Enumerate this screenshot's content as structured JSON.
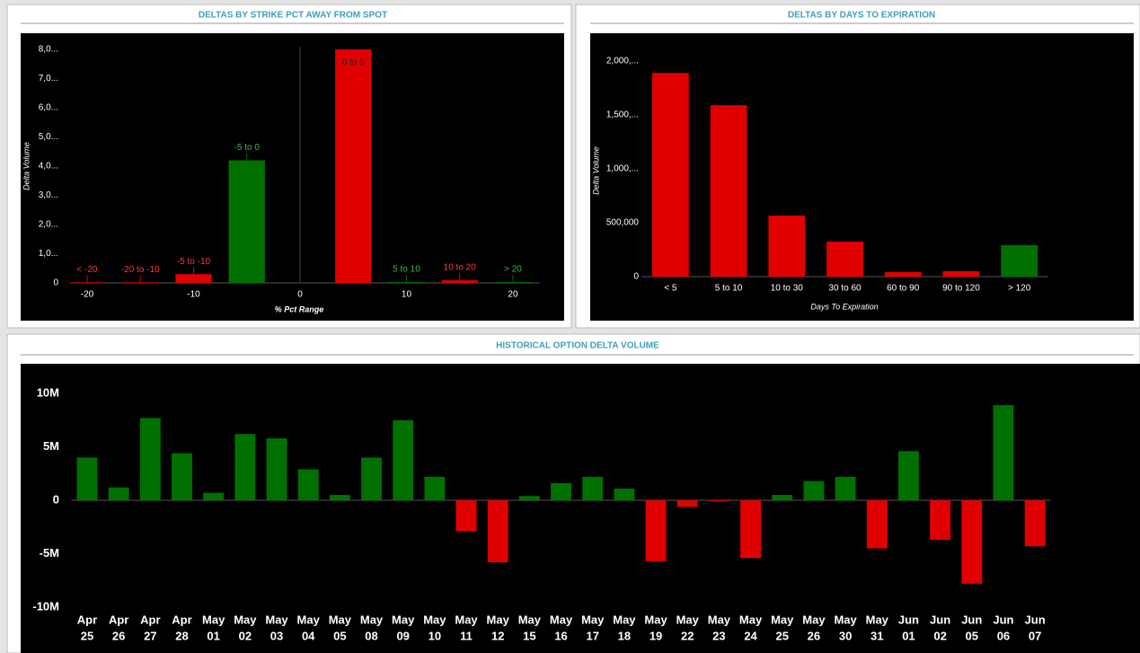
{
  "chart_data": [
    {
      "type": "bar",
      "title": "DELTAS BY STRIKE PCT AWAY FROM SPOT",
      "x_label": "% Pct Range",
      "y_label": "Delta Volume",
      "labels": [
        "< -20",
        "-20 to -10",
        "-5 to -10",
        "-5 to 0",
        "0 to 5",
        "5 to 10",
        "10 to 20",
        "> 20"
      ],
      "x": [
        -20,
        -15,
        -10,
        -5,
        5,
        10,
        15,
        20
      ],
      "values": [
        20,
        20,
        300,
        4200,
        8000,
        30,
        90,
        30
      ],
      "colors": [
        "#e00000",
        "#e00000",
        "#e00000",
        "#007000",
        "#e00000",
        "#007000",
        "#e00000",
        "#007000"
      ],
      "xlim": [
        -21.5,
        22.5
      ],
      "xticks": [
        -20,
        -10,
        0,
        10,
        20
      ],
      "ylim": [
        0,
        8300
      ],
      "yticks": [
        0,
        {
          "value": 1000,
          "label": "1,0..."
        },
        {
          "value": 2000,
          "label": "2,0..."
        },
        {
          "value": 3000,
          "label": "3,0..."
        },
        {
          "value": 4000,
          "label": "4,0..."
        },
        {
          "value": 5000,
          "label": "5,0..."
        },
        {
          "value": 6000,
          "label": "6,0..."
        },
        {
          "value": 7000,
          "label": "7,0..."
        },
        {
          "value": 8000,
          "label": "8,0..."
        }
      ]
    },
    {
      "type": "bar",
      "title": "DELTAS BY DAYS TO EXPIRATION",
      "x_label": "Days To Expiration",
      "y_label": "Delta Volume",
      "categories": [
        "< 5",
        "5 to 10",
        "10 to 30",
        "30 to 60",
        "60 to 90",
        "90 to 120",
        "> 120"
      ],
      "values": [
        1890000,
        1590000,
        567000,
        325000,
        42000,
        50000,
        292000
      ],
      "colors": [
        "#e00000",
        "#e00000",
        "#e00000",
        "#e00000",
        "#e00000",
        "#e00000",
        "#007000"
      ],
      "ylim": [
        0,
        2150000
      ],
      "yticks": [
        0,
        {
          "value": 500000,
          "label": "500,000"
        },
        {
          "value": 1000000,
          "label": "1,000,..."
        },
        {
          "value": 1500000,
          "label": "1,500,..."
        },
        {
          "value": 2000000,
          "label": "2,000,..."
        }
      ]
    },
    {
      "type": "bar",
      "title": "HISTORICAL OPTION DELTA VOLUME",
      "categories": [
        [
          "Apr",
          "25"
        ],
        [
          "Apr",
          "26"
        ],
        [
          "Apr",
          "27"
        ],
        [
          "Apr",
          "28"
        ],
        [
          "May",
          "01"
        ],
        [
          "May",
          "02"
        ],
        [
          "May",
          "03"
        ],
        [
          "May",
          "04"
        ],
        [
          "May",
          "05"
        ],
        [
          "May",
          "08"
        ],
        [
          "May",
          "09"
        ],
        [
          "May",
          "10"
        ],
        [
          "May",
          "11"
        ],
        [
          "May",
          "12"
        ],
        [
          "May",
          "15"
        ],
        [
          "May",
          "16"
        ],
        [
          "May",
          "17"
        ],
        [
          "May",
          "18"
        ],
        [
          "May",
          "19"
        ],
        [
          "May",
          "22"
        ],
        [
          "May",
          "23"
        ],
        [
          "May",
          "24"
        ],
        [
          "May",
          "25"
        ],
        [
          "May",
          "26"
        ],
        [
          "May",
          "30"
        ],
        [
          "May",
          "31"
        ],
        [
          "Jun",
          "01"
        ],
        [
          "Jun",
          "02"
        ],
        [
          "Jun",
          "05"
        ],
        [
          "Jun",
          "06"
        ],
        [
          "Jun",
          "07"
        ]
      ],
      "values": [
        4000000,
        1200000,
        7700000,
        4400000,
        700000,
        6200000,
        5800000,
        2900000,
        500000,
        4000000,
        7500000,
        2200000,
        -2900000,
        -5800000,
        400000,
        1600000,
        2200000,
        1100000,
        -5700000,
        -600000,
        -100000,
        -5400000,
        500000,
        1800000,
        2200000,
        -4500000,
        4600000,
        -3700000,
        -7800000,
        8900000,
        -4300000
      ],
      "positive_color": "#007000",
      "negative_color": "#e00000",
      "ylim": [
        -12000000,
        12000000
      ],
      "yticks": [
        {
          "value": -10000000,
          "label": "-10M"
        },
        {
          "value": -5000000,
          "label": "-5M"
        },
        0,
        {
          "value": 5000000,
          "label": "5M"
        },
        {
          "value": 10000000,
          "label": "10M"
        }
      ]
    }
  ]
}
